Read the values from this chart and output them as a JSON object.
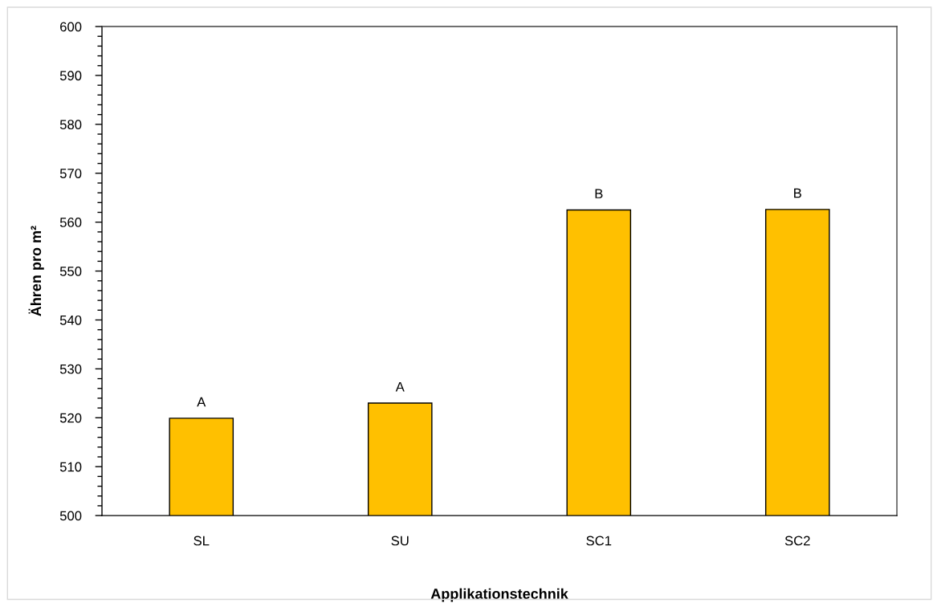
{
  "chart_data": {
    "type": "bar",
    "xlabel": "Applikationstechnik",
    "ylabel": "Ähren pro m²",
    "categories": [
      "SL",
      "SU",
      "SC1",
      "SC2"
    ],
    "values": [
      519.9,
      523.0,
      562.5,
      562.6
    ],
    "color": "#ffc000",
    "ylim": [
      500,
      600
    ],
    "yticks": [
      500,
      {
        "value": 502,
        "label": null
      },
      {
        "value": 504,
        "label": null
      },
      {
        "value": 506,
        "label": null
      },
      {
        "value": 508,
        "label": null
      },
      510,
      {
        "value": 512,
        "label": null
      },
      {
        "value": 514,
        "label": null
      },
      {
        "value": 516,
        "label": null
      },
      {
        "value": 518,
        "label": null
      },
      520,
      {
        "value": 522,
        "label": null
      },
      {
        "value": 524,
        "label": null
      },
      {
        "value": 526,
        "label": null
      },
      {
        "value": 528,
        "label": null
      },
      530,
      {
        "value": 532,
        "label": null
      },
      {
        "value": 534,
        "label": null
      },
      {
        "value": 536,
        "label": null
      },
      {
        "value": 538,
        "label": null
      },
      540,
      {
        "value": 542,
        "label": null
      },
      {
        "value": 544,
        "label": null
      },
      {
        "value": 546,
        "label": null
      },
      {
        "value": 548,
        "label": null
      },
      550,
      {
        "value": 552,
        "label": null
      },
      {
        "value": 554,
        "label": null
      },
      {
        "value": 556,
        "label": null
      },
      {
        "value": 558,
        "label": null
      },
      560,
      {
        "value": 562,
        "label": null
      },
      {
        "value": 564,
        "label": null
      },
      {
        "value": 566,
        "label": null
      },
      {
        "value": 568,
        "label": null
      },
      570,
      {
        "value": 572,
        "label": null
      },
      {
        "value": 574,
        "label": null
      },
      {
        "value": 576,
        "label": null
      },
      {
        "value": 578,
        "label": null
      },
      580,
      {
        "value": 582,
        "label": null
      },
      {
        "value": 584,
        "label": null
      },
      {
        "value": 586,
        "label": null
      },
      {
        "value": 588,
        "label": null
      },
      590,
      {
        "value": 592,
        "label": null
      },
      {
        "value": 594,
        "label": null
      },
      {
        "value": 596,
        "label": null
      },
      {
        "value": 598,
        "label": null
      },
      600
    ],
    "annotations": [
      {
        "text": "A",
        "x": "SL",
        "y": 519.9
      },
      {
        "text": "A",
        "x": "SU",
        "y": 523.0
      },
      {
        "text": "B",
        "x": "SC1",
        "y": 562.5
      },
      {
        "text": "B",
        "x": "SC2",
        "y": 562.6
      }
    ],
    "grid": false,
    "legend": false
  }
}
